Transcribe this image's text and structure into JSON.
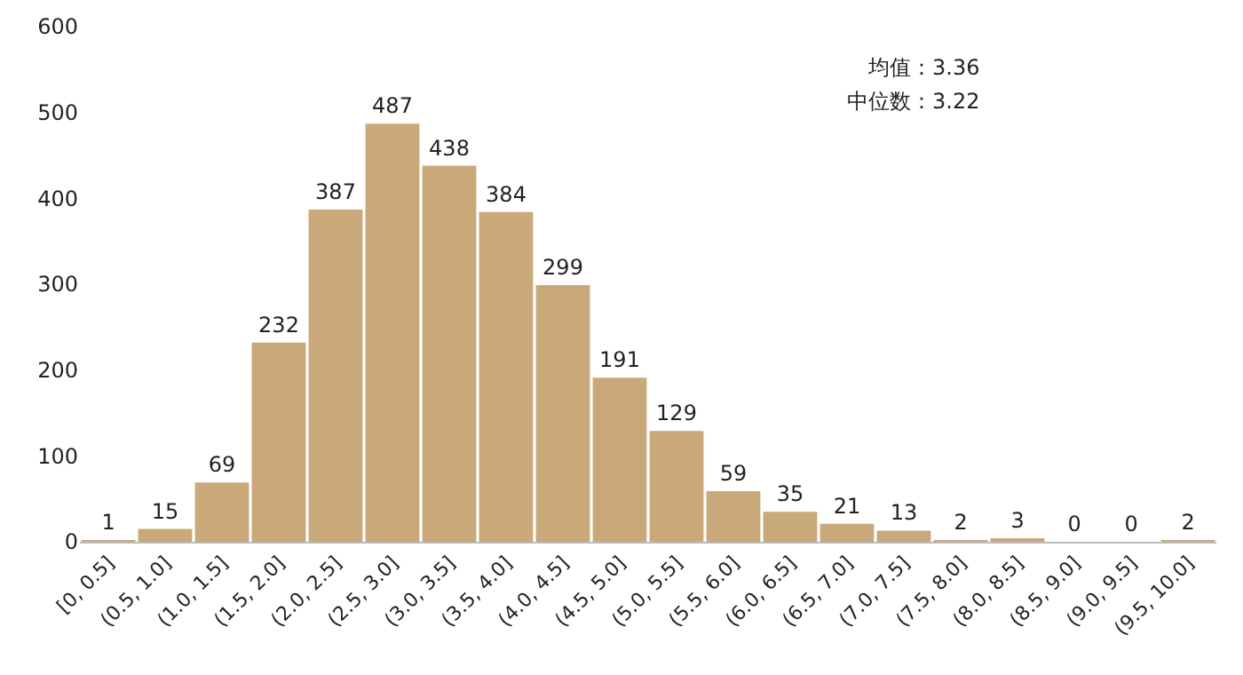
{
  "chart_data": {
    "type": "bar",
    "categories": [
      "[0, 0.5]",
      "(0.5, 1.0]",
      "(1.0, 1.5]",
      "(1.5, 2.0]",
      "(2.0, 2.5]",
      "(2.5, 3.0]",
      "(3.0, 3.5]",
      "(3.5, 4.0]",
      "(4.0, 4.5]",
      "(4.5, 5.0]",
      "(5.0, 5.5]",
      "(5.5, 6.0]",
      "(6.0, 6.5]",
      "(6.5, 7.0]",
      "(7.0, 7.5]",
      "(7.5, 8.0]",
      "(8.0, 8.5]",
      "(8.5, 9.0]",
      "(9.0, 9.5]",
      "(9.5, 10.0]"
    ],
    "values": [
      1,
      15,
      69,
      232,
      387,
      487,
      438,
      384,
      299,
      191,
      129,
      59,
      35,
      21,
      13,
      2,
      3,
      0,
      0,
      2
    ],
    "color": "#c9a97a",
    "ylim": [
      0,
      600
    ],
    "yticks": [
      0,
      100,
      200,
      300,
      400,
      500,
      600
    ],
    "grid": false,
    "data_labels": true,
    "legend": false,
    "annotations": [
      "均值：3.36",
      "中位数：3.22"
    ]
  }
}
